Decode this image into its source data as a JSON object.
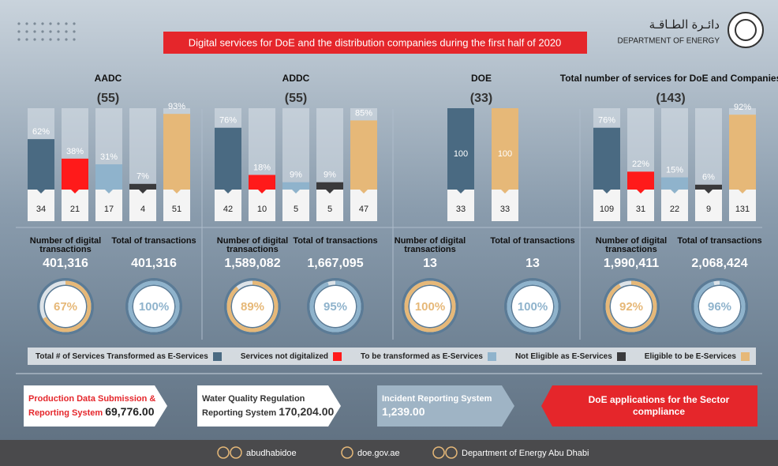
{
  "header": {
    "title": "Digital services for DoE and the distribution companies during the first half of 2020",
    "logo_arabic": "دائـرة الطـاقـة",
    "logo_text": "DEPARTMENT OF ENERGY"
  },
  "groups": [
    {
      "name": "AADC",
      "total": "(55)",
      "values": [
        62,
        38,
        31,
        7,
        93
      ],
      "value_labels": [
        "62%",
        "38%",
        "31%",
        "7%",
        "93%"
      ],
      "counts": [
        34,
        21,
        17,
        4,
        51
      ],
      "colors": [
        "#4a6a82",
        "#ff1a1a",
        "#8fb3cc",
        "#3a3a3c",
        "#e6b878"
      ],
      "stats": [
        {
          "label": "Number of digital transactions",
          "value": "401,316",
          "ring": 67,
          "ring_label": "67%",
          "color": "#e6b878"
        },
        {
          "label": "Total of transactions",
          "value": "401,316",
          "ring": 100,
          "ring_label": "100%",
          "color": "#8fb3cc"
        }
      ]
    },
    {
      "name": "ADDC",
      "total": "(55)",
      "values": [
        76,
        18,
        9,
        9,
        85
      ],
      "value_labels": [
        "76%",
        "18%",
        "9%",
        "9%",
        "85%"
      ],
      "counts": [
        42,
        10,
        5,
        5,
        47
      ],
      "colors": [
        "#4a6a82",
        "#ff1a1a",
        "#8fb3cc",
        "#3a3a3c",
        "#e6b878"
      ],
      "stats": [
        {
          "label": "Number of digital transactions",
          "value": "1,589,082",
          "ring": 89,
          "ring_label": "89%",
          "color": "#e6b878"
        },
        {
          "label": "Total of transactions",
          "value": "1,667,095",
          "ring": 95,
          "ring_label": "95%",
          "color": "#8fb3cc"
        }
      ]
    },
    {
      "name": "DOE",
      "total": "(33)",
      "values": [
        100,
        100
      ],
      "counts": [
        33,
        33
      ],
      "colors": [
        "#4a6a82",
        "#e6b878"
      ],
      "stats": [
        {
          "label": "Number of digital transactions",
          "value": "13",
          "ring": 100,
          "ring_label": "100%",
          "color": "#e6b878"
        },
        {
          "label": "Total of transactions",
          "value": "13",
          "ring": 100,
          "ring_label": "100%",
          "color": "#8fb3cc"
        }
      ]
    },
    {
      "name": "Total number of services for DoE and Companies",
      "total": "(143)",
      "values": [
        76,
        22,
        15,
        6,
        92
      ],
      "value_labels": [
        "76%",
        "22%",
        "15%",
        "6%",
        "92%"
      ],
      "counts": [
        109,
        31,
        22,
        9,
        131
      ],
      "colors": [
        "#4a6a82",
        "#ff1a1a",
        "#8fb3cc",
        "#3a3a3c",
        "#e6b878"
      ],
      "stats": [
        {
          "label": "Number of digital transactions",
          "value": "1,990,411",
          "ring": 92,
          "ring_label": "92%",
          "color": "#e6b878"
        },
        {
          "label": "Total of transactions",
          "value": "2,068,424",
          "ring": 96,
          "ring_label": "96%",
          "color": "#8fb3cc"
        }
      ]
    }
  ],
  "legend": [
    {
      "name": "Total # of Services Transformed as E-Services",
      "color": "#4a6a82"
    },
    {
      "name": "Services not digitalized",
      "color": "#ff1a1a"
    },
    {
      "name": "To be transformed as E-Services",
      "color": "#8fb3cc"
    },
    {
      "name": "Not Eligible as E-Services",
      "color": "#3a3a3c"
    },
    {
      "name": "Eligible to be E-Services",
      "color": "#e6b878"
    }
  ],
  "systems": [
    {
      "title": "Production Data Submission & Reporting System",
      "value": "69,776.00"
    },
    {
      "title": "Water Quality Regulation Reporting System",
      "value": "170,204.00"
    },
    {
      "title": "Incident Reporting System",
      "value": "1,239.00"
    }
  ],
  "sector": "DoE applications for the Sector compliance",
  "footer": [
    "abudhabidoe",
    "doe.gov.ae",
    "Department of Energy Abu Dhabi"
  ]
}
